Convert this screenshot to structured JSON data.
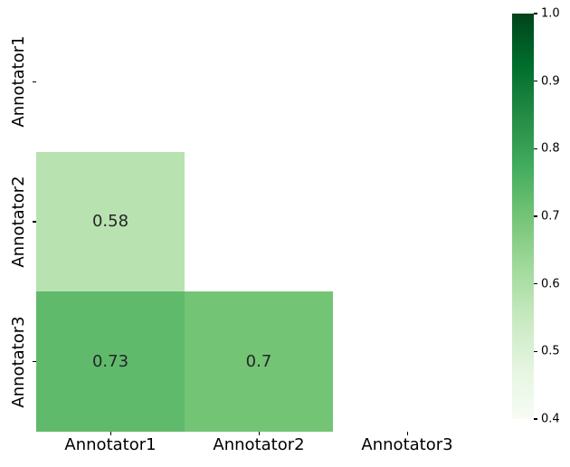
{
  "chart_data": {
    "type": "heatmap",
    "title": "",
    "xlabel": "",
    "ylabel": "",
    "x_categories": [
      "Annotator1",
      "Annotator2",
      "Annotator3"
    ],
    "y_categories": [
      "Annotator1",
      "Annotator2",
      "Annotator3"
    ],
    "matrix": [
      [
        null,
        null,
        null
      ],
      [
        0.58,
        null,
        null
      ],
      [
        0.73,
        0.7,
        null
      ]
    ],
    "cell_labels": [
      [
        "",
        "",
        ""
      ],
      [
        "0.58",
        "",
        ""
      ],
      [
        "0.73",
        "0.7",
        ""
      ]
    ],
    "masked_note": "upper triangle and diagonal are blank (white)",
    "vmin": 0.4,
    "vmax": 1.0,
    "colormap": {
      "name": "Greens",
      "stops": [
        "#f7fcf5",
        "#e5f5e0",
        "#c7e9c0",
        "#a1d99b",
        "#74c476",
        "#41ab5d",
        "#238b45",
        "#006d2c",
        "#00441b"
      ]
    },
    "colorbar": {
      "tick_labels": [
        "1.0",
        "0.9",
        "0.8",
        "0.7",
        "0.6",
        "0.5",
        "0.4"
      ],
      "orientation": "vertical",
      "position": "right"
    },
    "annotation_color": "#262626",
    "tick_color": "#000000",
    "background_color": "#ffffff",
    "grid": false,
    "legend": false
  }
}
